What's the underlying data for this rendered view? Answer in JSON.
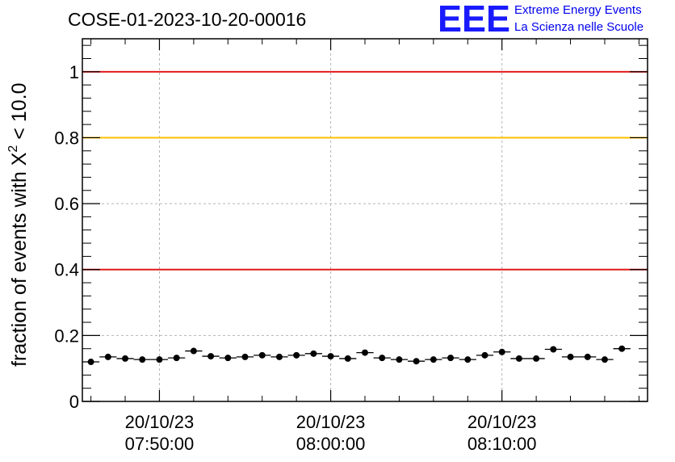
{
  "chart_data": {
    "type": "scatter",
    "title": "COSE-01-2023-10-20-00016",
    "ylabel": {
      "prefix": "fraction of events with ",
      "symbol": "X",
      "superscript": "2",
      "suffix": " < 10.0"
    },
    "xlabel": "",
    "xlim": [
      "07:45:30",
      "08:18:30"
    ],
    "ylim": [
      0,
      1.1
    ],
    "y_ticks": [
      {
        "value": 0,
        "label": "0"
      },
      {
        "value": 0.2,
        "label": "0.2"
      },
      {
        "value": 0.4,
        "label": "0.4"
      },
      {
        "value": 0.6,
        "label": "0.6"
      },
      {
        "value": 0.8,
        "label": "0.8"
      },
      {
        "value": 1.0,
        "label": "1"
      }
    ],
    "x_ticks": [
      {
        "time": "07:50:00",
        "date_label": "20/10/23",
        "time_label": "07:50:00"
      },
      {
        "time": "08:00:00",
        "date_label": "20/10/23",
        "time_label": "08:00:00"
      },
      {
        "time": "08:10:00",
        "date_label": "20/10/23",
        "time_label": "08:10:00"
      }
    ],
    "grid": true,
    "reference_lines": [
      {
        "y": 1.0,
        "color": "#e41a1a"
      },
      {
        "y": 0.8,
        "color": "#ffc000"
      },
      {
        "y": 0.4,
        "color": "#e41a1a"
      }
    ],
    "series": [
      {
        "color": "#000000",
        "bin_width_min": 1.0,
        "points": [
          {
            "x": "07:46:00",
            "y": 0.12
          },
          {
            "x": "07:47:00",
            "y": 0.135
          },
          {
            "x": "07:48:00",
            "y": 0.13
          },
          {
            "x": "07:49:00",
            "y": 0.127
          },
          {
            "x": "07:50:00",
            "y": 0.127
          },
          {
            "x": "07:51:00",
            "y": 0.132
          },
          {
            "x": "07:52:00",
            "y": 0.153
          },
          {
            "x": "07:53:00",
            "y": 0.137
          },
          {
            "x": "07:54:00",
            "y": 0.132
          },
          {
            "x": "07:55:00",
            "y": 0.135
          },
          {
            "x": "07:56:00",
            "y": 0.14
          },
          {
            "x": "07:57:00",
            "y": 0.135
          },
          {
            "x": "07:58:00",
            "y": 0.14
          },
          {
            "x": "07:59:00",
            "y": 0.145
          },
          {
            "x": "08:00:00",
            "y": 0.137
          },
          {
            "x": "08:01:00",
            "y": 0.13
          },
          {
            "x": "08:02:00",
            "y": 0.148
          },
          {
            "x": "08:03:00",
            "y": 0.132
          },
          {
            "x": "08:04:00",
            "y": 0.127
          },
          {
            "x": "08:05:00",
            "y": 0.122
          },
          {
            "x": "08:06:00",
            "y": 0.127
          },
          {
            "x": "08:07:00",
            "y": 0.132
          },
          {
            "x": "08:08:00",
            "y": 0.127
          },
          {
            "x": "08:09:00",
            "y": 0.14
          },
          {
            "x": "08:10:00",
            "y": 0.15
          },
          {
            "x": "08:11:00",
            "y": 0.13
          },
          {
            "x": "08:12:00",
            "y": 0.13
          },
          {
            "x": "08:13:00",
            "y": 0.158
          },
          {
            "x": "08:14:00",
            "y": 0.135
          },
          {
            "x": "08:15:00",
            "y": 0.135
          },
          {
            "x": "08:16:00",
            "y": 0.127
          },
          {
            "x": "08:17:00",
            "y": 0.16
          }
        ]
      }
    ]
  },
  "logo": {
    "mark": "EEE",
    "line1": "Extreme Energy Events",
    "line2": "La Scienza nelle Scuole",
    "color": "#1a1aff"
  }
}
